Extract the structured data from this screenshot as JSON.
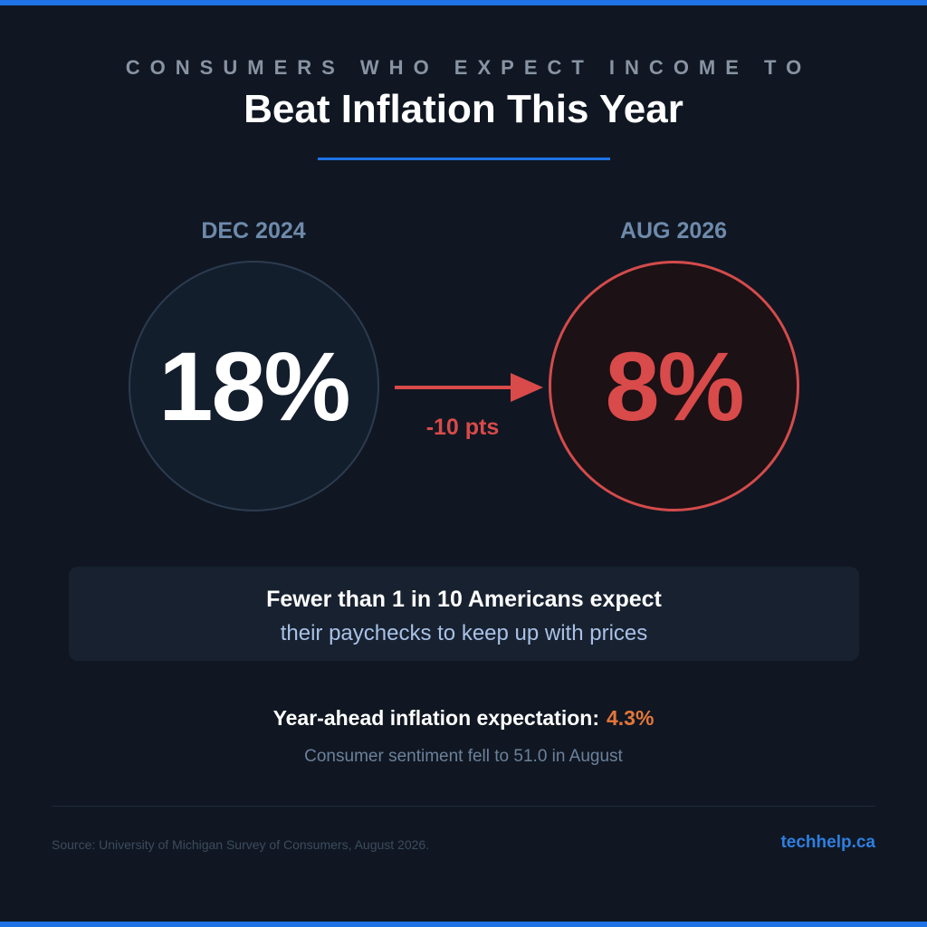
{
  "colors": {
    "accent": "#1f73e6",
    "before_value": "#ffffff",
    "after_value": "#d94a4a",
    "highlight": "#e5763a"
  },
  "header": {
    "eyebrow": "CONSUMERS WHO EXPECT INCOME TO",
    "title": "Beat Inflation This Year"
  },
  "comparison": {
    "before": {
      "period": "DEC 2024",
      "value": "18%"
    },
    "after": {
      "period": "AUG 2026",
      "value": "8%"
    },
    "change": "-10 pts",
    "arrow_icon": "arrow-right-icon"
  },
  "callout": {
    "line1": "Fewer than 1 in 10 Americans expect",
    "line2": "their paychecks to keep up with prices"
  },
  "stat": {
    "label": "Year-ahead inflation expectation:",
    "value": "4.3%",
    "note": "Consumer sentiment fell to 51.0 in August"
  },
  "footer": {
    "source": "Source: University of Michigan Survey of Consumers, August 2026.",
    "brand": "techhelp.ca"
  }
}
